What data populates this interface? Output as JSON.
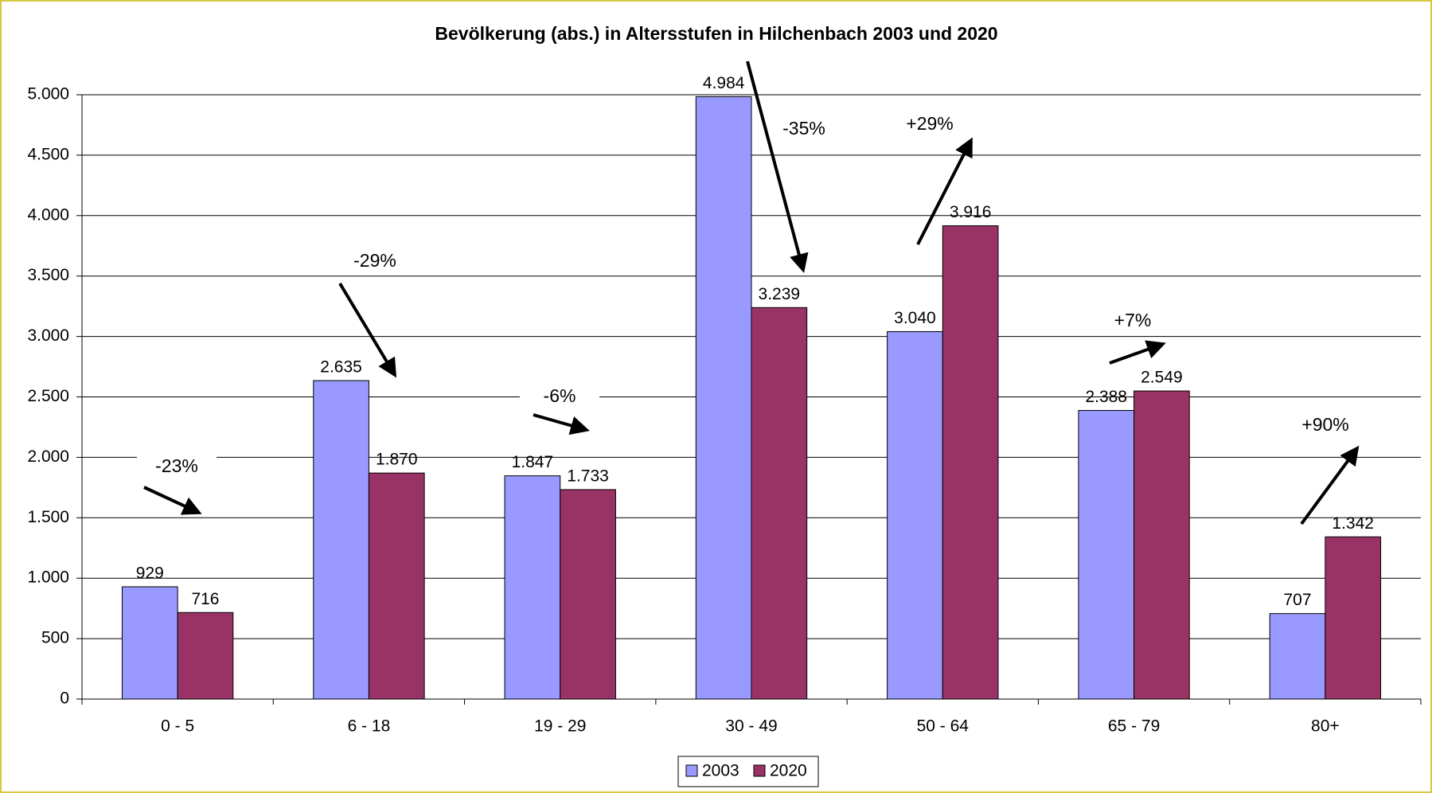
{
  "chart_data": {
    "type": "bar",
    "title": "Bevölkerung (abs.) in Altersstufen in Hilchenbach 2003 und 2020",
    "categories": [
      "0 - 5",
      "6 - 18",
      "19 - 29",
      "30 - 49",
      "50 - 64",
      "65 - 79",
      "80+"
    ],
    "series": [
      {
        "name": "2003",
        "color": "#9999ff",
        "values": [
          929,
          2635,
          1847,
          4984,
          3040,
          2388,
          707
        ],
        "value_labels": [
          "929",
          "2.635",
          "1.847",
          "4.984",
          "3.040",
          "2.388",
          "707"
        ]
      },
      {
        "name": "2020",
        "color": "#993366",
        "values": [
          716,
          1870,
          1733,
          3239,
          3916,
          2549,
          1342
        ],
        "value_labels": [
          "716",
          "1.870",
          "1.733",
          "3.239",
          "3.916",
          "2.549",
          "1.342"
        ]
      }
    ],
    "ylim": [
      0,
      5000
    ],
    "yticks": [
      0,
      500,
      {
        "value": 1000,
        "label": "1.000"
      },
      {
        "value": 1500,
        "label": "1.500"
      },
      {
        "value": 2000,
        "label": "2.000"
      },
      {
        "value": 2500,
        "label": "2.500"
      },
      {
        "value": 3000,
        "label": "3.000"
      },
      {
        "value": 3500,
        "label": "3.500"
      },
      {
        "value": 4000,
        "label": "4.000"
      },
      {
        "value": 4500,
        "label": "4.500"
      },
      {
        "value": 5000,
        "label": "5.000"
      }
    ],
    "grid": true,
    "legend": "bottom",
    "annotations": [
      "-23%",
      "-29%",
      "-6%",
      "-35%",
      "+29%",
      "+7%",
      "+90%"
    ]
  }
}
